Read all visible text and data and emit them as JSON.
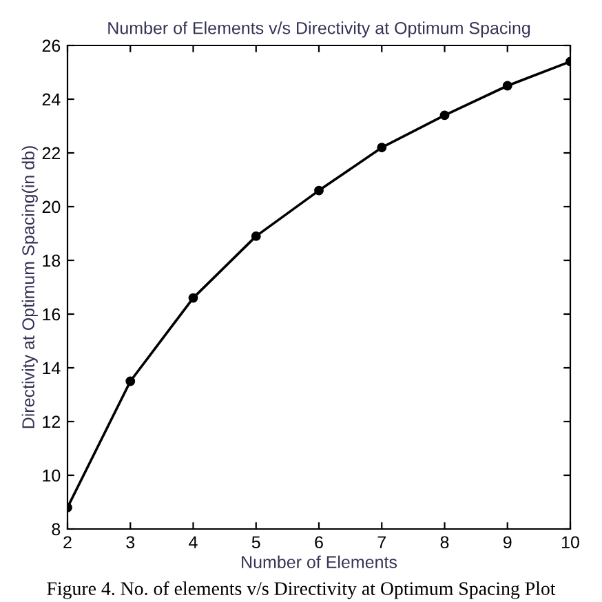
{
  "chart_data": {
    "type": "line",
    "title": "Number of Elements v/s Directivity at Optimum Spacing",
    "xlabel": "Number of Elements",
    "ylabel": "Directivity at Optimum Spacing(in db)",
    "x": [
      2,
      3,
      4,
      5,
      6,
      7,
      8,
      9,
      10
    ],
    "series": [
      {
        "color": "#000000",
        "values": [
          8.8,
          13.5,
          16.6,
          18.9,
          20.6,
          22.2,
          23.4,
          24.5,
          25.4
        ]
      }
    ],
    "xlim": [
      2,
      10
    ],
    "xticks": [
      2,
      3,
      4,
      5,
      6,
      7,
      8,
      9,
      10
    ],
    "ylim": [
      8,
      26
    ],
    "yticks": [
      8,
      10,
      12,
      14,
      16,
      18,
      20,
      22,
      24,
      26
    ],
    "grid": false,
    "marker": "circle",
    "line_style": "solid",
    "annotations": [
      "Figure 4. No. of elements v/s Directivity at Optimum Spacing Plot"
    ]
  }
}
